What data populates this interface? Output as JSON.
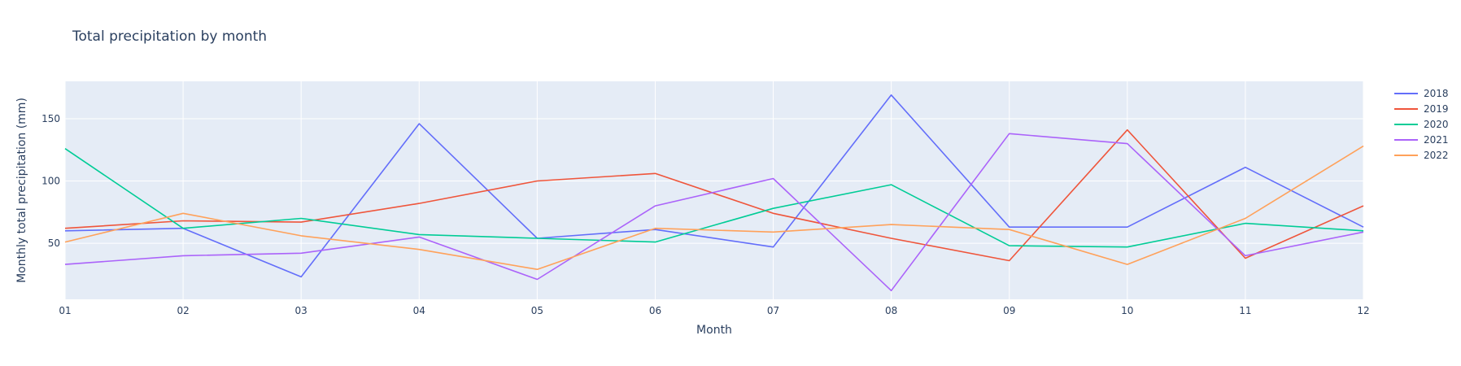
{
  "chart_data": {
    "type": "line",
    "title": "Total precipitation by month",
    "xlabel": "Month",
    "ylabel": "Monthly total precipitation (mm)",
    "x": [
      "01",
      "02",
      "03",
      "04",
      "05",
      "06",
      "07",
      "08",
      "09",
      "10",
      "11",
      "12"
    ],
    "yticks": [
      50,
      100,
      150
    ],
    "ylim": [
      5,
      180
    ],
    "grid": true,
    "legend_position": "right",
    "series": [
      {
        "name": "2018",
        "color": "#636efa",
        "values": [
          60,
          62,
          23,
          146,
          54,
          61,
          47,
          169,
          63,
          63,
          111,
          63
        ]
      },
      {
        "name": "2019",
        "color": "#ef553b",
        "values": [
          62,
          68,
          67,
          82,
          100,
          106,
          74,
          54,
          36,
          141,
          38,
          80
        ]
      },
      {
        "name": "2020",
        "color": "#00cc96",
        "values": [
          126,
          62,
          70,
          57,
          54,
          51,
          78,
          97,
          48,
          47,
          66,
          60
        ]
      },
      {
        "name": "2021",
        "color": "#ab63fa",
        "values": [
          33,
          40,
          42,
          55,
          21,
          80,
          102,
          12,
          138,
          130,
          40,
          59
        ]
      },
      {
        "name": "2022",
        "color": "#ffa15a",
        "values": [
          51,
          74,
          56,
          45,
          29,
          62,
          59,
          65,
          61,
          33,
          70,
          128
        ]
      }
    ]
  }
}
